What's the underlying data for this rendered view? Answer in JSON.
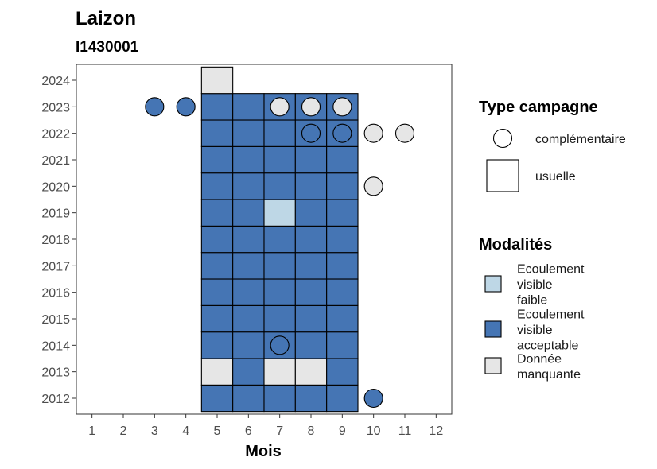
{
  "chart_data": {
    "type": "heatmap",
    "title": "Laizon",
    "subtitle": "I1430001",
    "xlabel": "Mois",
    "ylabel": "",
    "x_ticks": [
      "1",
      "2",
      "3",
      "4",
      "5",
      "6",
      "7",
      "8",
      "9",
      "10",
      "11",
      "12"
    ],
    "y_ticks": [
      "2012",
      "2013",
      "2014",
      "2015",
      "2016",
      "2017",
      "2018",
      "2019",
      "2020",
      "2021",
      "2022",
      "2023",
      "2024"
    ],
    "xlim": [
      0.5,
      12.5
    ],
    "ylim": [
      2011.4,
      2024.6
    ],
    "grid": false,
    "colors": {
      "Ecoulement visible faible": "#bed7e6",
      "Ecoulement visible acceptable": "#4575b4",
      "Donnée manquante": "#e6e6e6"
    },
    "usuelle": [
      {
        "year": 2012,
        "month": 5,
        "modalite": "Ecoulement visible acceptable"
      },
      {
        "year": 2012,
        "month": 6,
        "modalite": "Ecoulement visible acceptable"
      },
      {
        "year": 2012,
        "month": 7,
        "modalite": "Ecoulement visible acceptable"
      },
      {
        "year": 2012,
        "month": 8,
        "modalite": "Ecoulement visible acceptable"
      },
      {
        "year": 2012,
        "month": 9,
        "modalite": "Ecoulement visible acceptable"
      },
      {
        "year": 2013,
        "month": 5,
        "modalite": "Donnée manquante"
      },
      {
        "year": 2013,
        "month": 6,
        "modalite": "Ecoulement visible acceptable"
      },
      {
        "year": 2013,
        "month": 7,
        "modalite": "Donnée manquante"
      },
      {
        "year": 2013,
        "month": 8,
        "modalite": "Donnée manquante"
      },
      {
        "year": 2013,
        "month": 9,
        "modalite": "Ecoulement visible acceptable"
      },
      {
        "year": 2014,
        "month": 5,
        "modalite": "Ecoulement visible acceptable"
      },
      {
        "year": 2014,
        "month": 6,
        "modalite": "Ecoulement visible acceptable"
      },
      {
        "year": 2014,
        "month": 7,
        "modalite": "Ecoulement visible acceptable"
      },
      {
        "year": 2014,
        "month": 8,
        "modalite": "Ecoulement visible acceptable"
      },
      {
        "year": 2014,
        "month": 9,
        "modalite": "Ecoulement visible acceptable"
      },
      {
        "year": 2015,
        "month": 5,
        "modalite": "Ecoulement visible acceptable"
      },
      {
        "year": 2015,
        "month": 6,
        "modalite": "Ecoulement visible acceptable"
      },
      {
        "year": 2015,
        "month": 7,
        "modalite": "Ecoulement visible acceptable"
      },
      {
        "year": 2015,
        "month": 8,
        "modalite": "Ecoulement visible acceptable"
      },
      {
        "year": 2015,
        "month": 9,
        "modalite": "Ecoulement visible acceptable"
      },
      {
        "year": 2016,
        "month": 5,
        "modalite": "Ecoulement visible acceptable"
      },
      {
        "year": 2016,
        "month": 6,
        "modalite": "Ecoulement visible acceptable"
      },
      {
        "year": 2016,
        "month": 7,
        "modalite": "Ecoulement visible acceptable"
      },
      {
        "year": 2016,
        "month": 8,
        "modalite": "Ecoulement visible acceptable"
      },
      {
        "year": 2016,
        "month": 9,
        "modalite": "Ecoulement visible acceptable"
      },
      {
        "year": 2017,
        "month": 5,
        "modalite": "Ecoulement visible acceptable"
      },
      {
        "year": 2017,
        "month": 6,
        "modalite": "Ecoulement visible acceptable"
      },
      {
        "year": 2017,
        "month": 7,
        "modalite": "Ecoulement visible acceptable"
      },
      {
        "year": 2017,
        "month": 8,
        "modalite": "Ecoulement visible acceptable"
      },
      {
        "year": 2017,
        "month": 9,
        "modalite": "Ecoulement visible acceptable"
      },
      {
        "year": 2018,
        "month": 5,
        "modalite": "Ecoulement visible acceptable"
      },
      {
        "year": 2018,
        "month": 6,
        "modalite": "Ecoulement visible acceptable"
      },
      {
        "year": 2018,
        "month": 7,
        "modalite": "Ecoulement visible acceptable"
      },
      {
        "year": 2018,
        "month": 8,
        "modalite": "Ecoulement visible acceptable"
      },
      {
        "year": 2018,
        "month": 9,
        "modalite": "Ecoulement visible acceptable"
      },
      {
        "year": 2019,
        "month": 5,
        "modalite": "Ecoulement visible acceptable"
      },
      {
        "year": 2019,
        "month": 6,
        "modalite": "Ecoulement visible acceptable"
      },
      {
        "year": 2019,
        "month": 7,
        "modalite": "Ecoulement visible faible"
      },
      {
        "year": 2019,
        "month": 8,
        "modalite": "Ecoulement visible acceptable"
      },
      {
        "year": 2019,
        "month": 9,
        "modalite": "Ecoulement visible acceptable"
      },
      {
        "year": 2020,
        "month": 5,
        "modalite": "Ecoulement visible acceptable"
      },
      {
        "year": 2020,
        "month": 6,
        "modalite": "Ecoulement visible acceptable"
      },
      {
        "year": 2020,
        "month": 7,
        "modalite": "Ecoulement visible acceptable"
      },
      {
        "year": 2020,
        "month": 8,
        "modalite": "Ecoulement visible acceptable"
      },
      {
        "year": 2020,
        "month": 9,
        "modalite": "Ecoulement visible acceptable"
      },
      {
        "year": 2021,
        "month": 5,
        "modalite": "Ecoulement visible acceptable"
      },
      {
        "year": 2021,
        "month": 6,
        "modalite": "Ecoulement visible acceptable"
      },
      {
        "year": 2021,
        "month": 7,
        "modalite": "Ecoulement visible acceptable"
      },
      {
        "year": 2021,
        "month": 8,
        "modalite": "Ecoulement visible acceptable"
      },
      {
        "year": 2021,
        "month": 9,
        "modalite": "Ecoulement visible acceptable"
      },
      {
        "year": 2022,
        "month": 5,
        "modalite": "Ecoulement visible acceptable"
      },
      {
        "year": 2022,
        "month": 6,
        "modalite": "Ecoulement visible acceptable"
      },
      {
        "year": 2022,
        "month": 7,
        "modalite": "Ecoulement visible acceptable"
      },
      {
        "year": 2022,
        "month": 8,
        "modalite": "Ecoulement visible acceptable"
      },
      {
        "year": 2022,
        "month": 9,
        "modalite": "Ecoulement visible acceptable"
      },
      {
        "year": 2023,
        "month": 5,
        "modalite": "Ecoulement visible acceptable"
      },
      {
        "year": 2023,
        "month": 6,
        "modalite": "Ecoulement visible acceptable"
      },
      {
        "year": 2023,
        "month": 7,
        "modalite": "Ecoulement visible acceptable"
      },
      {
        "year": 2023,
        "month": 8,
        "modalite": "Ecoulement visible acceptable"
      },
      {
        "year": 2023,
        "month": 9,
        "modalite": "Ecoulement visible acceptable"
      },
      {
        "year": 2024,
        "month": 5,
        "modalite": "Donnée manquante"
      }
    ],
    "complementaire": [
      {
        "year": 2012,
        "month": 10,
        "modalite": "Ecoulement visible acceptable"
      },
      {
        "year": 2014,
        "month": 7,
        "modalite": "Ecoulement visible acceptable"
      },
      {
        "year": 2020,
        "month": 10,
        "modalite": "Donnée manquante"
      },
      {
        "year": 2022,
        "month": 8,
        "modalite": "Ecoulement visible acceptable"
      },
      {
        "year": 2022,
        "month": 9,
        "modalite": "Ecoulement visible acceptable"
      },
      {
        "year": 2022,
        "month": 10,
        "modalite": "Donnée manquante"
      },
      {
        "year": 2022,
        "month": 11,
        "modalite": "Donnée manquante"
      },
      {
        "year": 2023,
        "month": 3,
        "modalite": "Ecoulement visible acceptable"
      },
      {
        "year": 2023,
        "month": 4,
        "modalite": "Ecoulement visible acceptable"
      },
      {
        "year": 2023,
        "month": 7,
        "modalite": "Donnée manquante"
      },
      {
        "year": 2023,
        "month": 8,
        "modalite": "Donnée manquante"
      },
      {
        "year": 2023,
        "month": 9,
        "modalite": "Donnée manquante"
      }
    ],
    "legend_placement": "right",
    "legend_type": {
      "title": "Type campagne",
      "items": [
        "complémentaire",
        "usuelle"
      ]
    },
    "legend_modalites": {
      "title": "Modalités",
      "items": [
        {
          "lines": [
            "Ecoulement",
            "visible",
            "faible"
          ],
          "modalite": "Ecoulement visible faible"
        },
        {
          "lines": [
            "Ecoulement",
            "visible",
            "acceptable"
          ],
          "modalite": "Ecoulement visible acceptable"
        },
        {
          "lines": [
            "Donnée",
            "manquante"
          ],
          "modalite": "Donnée manquante"
        }
      ]
    }
  }
}
